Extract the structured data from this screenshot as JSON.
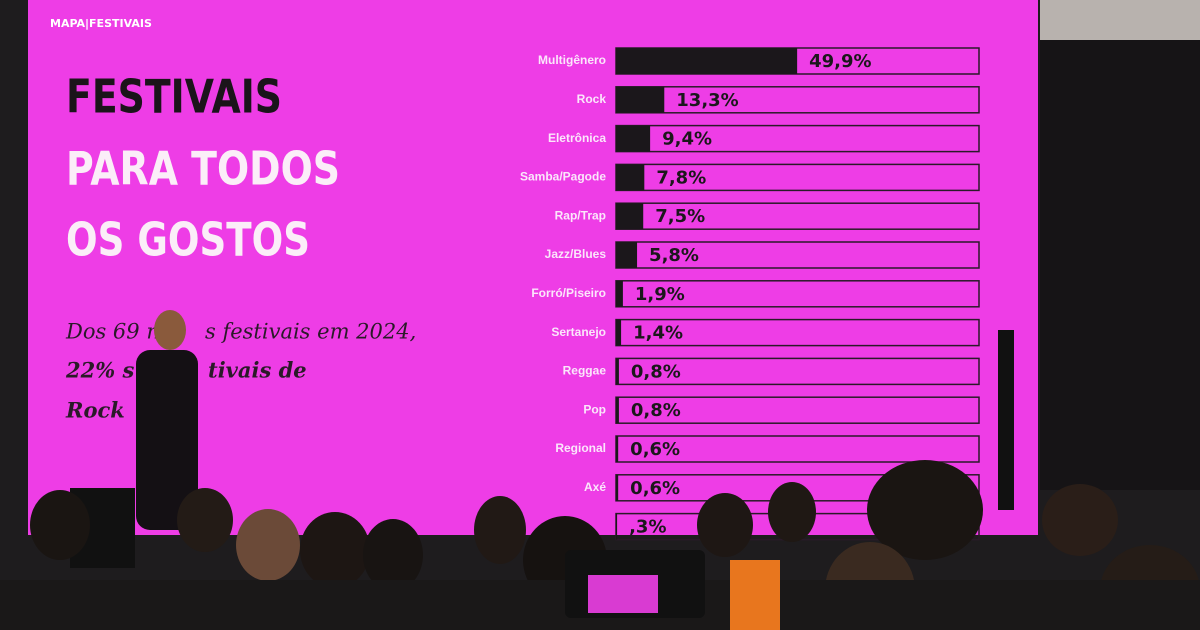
{
  "logo": "MAPA|FESTIVAIS",
  "chart_data": {
    "type": "bar",
    "orientation": "horizontal",
    "title_lines": [
      "FESTIVAIS",
      "PARA TODOS",
      "OS GOSTOS"
    ],
    "subtitle_fragments": [
      "Dos 69 n",
      "s festivais em 2024,",
      "22% s",
      "tivais de",
      "Rock"
    ],
    "categories": [
      "Multigênero",
      "Rock",
      "Eletrônica",
      "Samba/Pagode",
      "Rap/Trap",
      "Jazz/Blues",
      "Forró/Piseiro",
      "Sertanejo",
      "Reggae",
      "Pop",
      "Regional",
      "Axé",
      null
    ],
    "values": [
      49.9,
      13.3,
      9.4,
      7.8,
      7.5,
      5.8,
      1.9,
      1.4,
      0.8,
      0.8,
      0.6,
      0.6,
      0.3
    ],
    "value_labels": [
      "49,9%",
      "13,3%",
      "9,4%",
      "7,8%",
      "7,5%",
      "5,8%",
      "1,9%",
      "1,4%",
      "0,8%",
      "0,8%",
      "0,6%",
      "0,6%",
      ",3%"
    ],
    "xlim": [
      0,
      100
    ],
    "color": "#1b171b"
  }
}
